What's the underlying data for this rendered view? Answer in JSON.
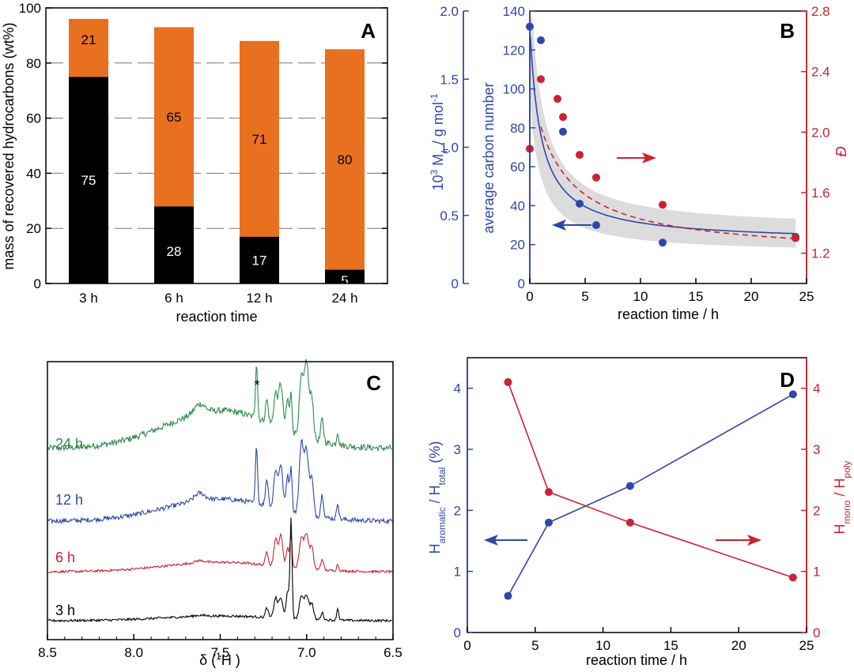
{
  "colors": {
    "black": "#000000",
    "orange": "#e8701f",
    "blue": "#2f47a8",
    "red": "#cc2230",
    "green": "#2c8a4b",
    "gray": "#dcdcdc"
  },
  "chart_data": [
    {
      "panel": "A",
      "type": "bar",
      "stacked": true,
      "categories": [
        "3 h",
        "6 h",
        "12 h",
        "24 h"
      ],
      "series": [
        {
          "name": "black",
          "values": [
            75,
            28,
            17,
            5
          ],
          "labels": [
            "75",
            "28",
            "17",
            "5"
          ]
        },
        {
          "name": "orange",
          "values": [
            21,
            65,
            71,
            80
          ],
          "labels": [
            "21",
            "65",
            "71",
            "80"
          ]
        }
      ],
      "xlabel": "reaction time",
      "ylabel": "mass of recovered hydrocarbons (wt%)",
      "ylim": [
        0,
        100
      ],
      "yticks": [
        "0",
        "20",
        "40",
        "60",
        "80",
        "100"
      ]
    },
    {
      "panel": "B",
      "type": "scatter",
      "xlabel": "reaction time / h",
      "ylabel_left": "average carbon number",
      "ylabel_left2": "10³ Mn / g mol⁻¹",
      "ylabel_right": "Đ",
      "xlim": [
        0,
        25
      ],
      "xticks": [
        "0",
        "5",
        "10",
        "15",
        "20",
        "25"
      ],
      "ylim_left": [
        0,
        140
      ],
      "yticks_left": [
        "0",
        "20",
        "40",
        "60",
        "80",
        "100",
        "120",
        "140"
      ],
      "ylim_mn": [
        0,
        2.0
      ],
      "yticks_mn": [
        "0",
        "0.5",
        "1.0",
        "1.5",
        "2.0"
      ],
      "ylim_right": [
        1.0,
        2.8
      ],
      "yticks_right": [
        "1.2",
        "1.6",
        "2.0",
        "2.4",
        "2.8"
      ],
      "series": [
        {
          "name": "average carbon number",
          "x": [
            0,
            1,
            3,
            4.5,
            6,
            12,
            24
          ],
          "y": [
            132,
            125,
            78,
            41,
            30,
            21,
            24
          ]
        },
        {
          "name": "Đ",
          "x": [
            0,
            1,
            2.5,
            3,
            4.5,
            6,
            12,
            24
          ],
          "y": [
            1.89,
            2.35,
            2.22,
            2.1,
            1.85,
            1.7,
            1.52,
            1.3
          ]
        }
      ]
    },
    {
      "panel": "C",
      "type": "line",
      "xlabel": "δ (¹H )",
      "xlim": [
        8.5,
        6.5
      ],
      "xticks": [
        "8.5",
        "8.0",
        "7.5",
        "7.0",
        "6.5"
      ],
      "series": [
        {
          "name": "24 h",
          "color": "green"
        },
        {
          "name": "12 h",
          "color": "blue"
        },
        {
          "name": "6 h",
          "color": "red"
        },
        {
          "name": "3 h",
          "color": "black"
        }
      ],
      "annotation": "*"
    },
    {
      "panel": "D",
      "type": "line",
      "xlabel": "reaction time / h",
      "ylabel_left": "Haromatic / Htotal (%)",
      "ylabel_right": "Hmono / Hpoly",
      "xlim": [
        0,
        25
      ],
      "xticks": [
        "0",
        "5",
        "10",
        "15",
        "20",
        "25"
      ],
      "ylim_left": [
        0,
        4.5
      ],
      "yticks_left": [
        "0",
        "1",
        "2",
        "3",
        "4"
      ],
      "ylim_right": [
        0,
        4.5
      ],
      "yticks_right": [
        "0",
        "1",
        "2",
        "3",
        "4"
      ],
      "series": [
        {
          "name": "Haromatic / Htotal",
          "x": [
            3,
            6,
            12,
            24
          ],
          "y": [
            0.6,
            1.8,
            2.4,
            3.9
          ]
        },
        {
          "name": "Hmono / Hpoly",
          "x": [
            3,
            6,
            12,
            24
          ],
          "y": [
            4.1,
            2.3,
            1.8,
            0.9
          ]
        }
      ]
    }
  ],
  "text": {
    "panelA": "A",
    "panelB": "B",
    "panelC": "C",
    "panelD": "D",
    "xlabelA": "reaction time",
    "ylabelA": "mass of recovered hydrocarbons (wt%)",
    "xlabelB": "reaction time / h",
    "ylabelB1": "average carbon number",
    "ylabelB2_prefix": "10",
    "ylabelB2_sup": "3",
    "ylabelB2_mid": " M",
    "ylabelB2_sub": "n",
    "ylabelB2_unit": " / g mol",
    "ylabelB2_unit_sup": "-1",
    "ylabelBR": "Đ",
    "xlabelC_a": "δ (",
    "xlabelC_sup": "1",
    "xlabelC_b": "H )",
    "starC": "*",
    "xlabelD": "reaction time / h",
    "ylabelD_H": "H",
    "ylabelD_sub1": "aromatic",
    "ylabelD_mid": " / H",
    "ylabelD_sub2": "total",
    "ylabelD_end": " (%)",
    "ylabelDR_sub1": "mono",
    "ylabelDR_sub2": "poly",
    "ylabelDR_mid": " / H"
  }
}
